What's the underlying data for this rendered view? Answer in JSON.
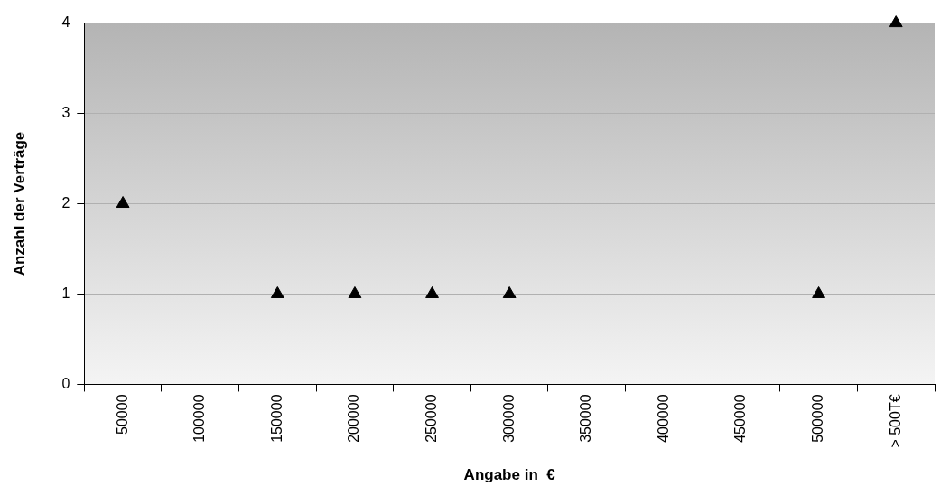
{
  "chart_data": {
    "type": "scatter",
    "xlabel": "Angabe in  €",
    "ylabel": "Anzahl der Verträge",
    "categories": [
      "50000",
      "100000",
      "150000",
      "200000",
      "250000",
      "300000",
      "350000",
      "400000",
      "450000",
      "500000",
      "> 500T€"
    ],
    "series": [
      {
        "color": "#000000",
        "values": [
          2,
          null,
          1,
          1,
          1,
          1,
          null,
          null,
          null,
          1,
          4
        ]
      }
    ],
    "ylim": [
      0,
      4
    ],
    "yticks": [
      0,
      1,
      2,
      3,
      4
    ],
    "grid": "y",
    "legend": false,
    "marker": "triangle"
  }
}
